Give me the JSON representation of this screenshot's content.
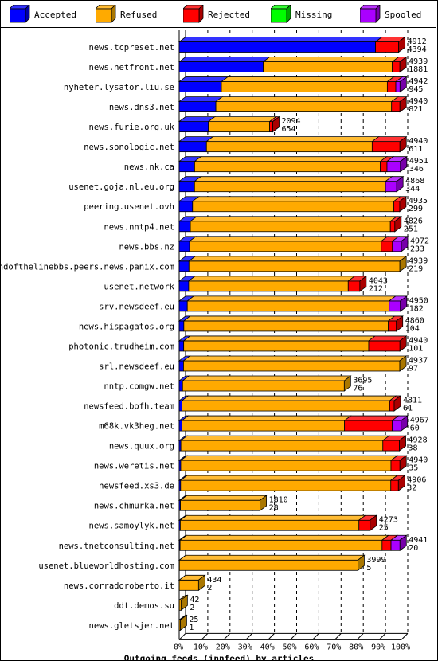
{
  "legend": [
    {
      "label": "Accepted",
      "color": "#0000ff",
      "side": "#0000aa",
      "top": "#3333ff"
    },
    {
      "label": "Refused",
      "color": "#ffaa00",
      "side": "#aa7700",
      "top": "#ffbb33"
    },
    {
      "label": "Rejected",
      "color": "#ff0000",
      "side": "#aa0000",
      "top": "#ff3333"
    },
    {
      "label": "Missing",
      "color": "#00ff00",
      "side": "#00aa00",
      "top": "#33ff33"
    },
    {
      "label": "Spooled",
      "color": "#aa00ff",
      "side": "#7700aa",
      "top": "#bb33ff"
    }
  ],
  "chart_data": {
    "type": "bar",
    "title": "Outgoing feeds (innfeed) by articles",
    "xticks": [
      "0%",
      "10%",
      "20%",
      "30%",
      "40%",
      "50%",
      "60%",
      "70%",
      "80%",
      "90%",
      "100%"
    ],
    "max_total": 4972,
    "series_names": [
      "Accepted",
      "Refused",
      "Rejected",
      "Missing",
      "Spooled"
    ],
    "rows": [
      {
        "name": "news.tcpreset.net",
        "total": 4912,
        "accepted": 4394,
        "segs": [
          4394,
          0,
          518,
          0,
          0
        ]
      },
      {
        "name": "news.netfront.net",
        "total": 4939,
        "accepted": 1881,
        "segs": [
          1881,
          2888,
          170,
          0,
          0
        ]
      },
      {
        "name": "nyheter.lysator.liu.se",
        "total": 4942,
        "accepted": 945,
        "segs": [
          945,
          3713,
          190,
          0,
          94
        ]
      },
      {
        "name": "news.dns3.net",
        "total": 4940,
        "accepted": 821,
        "segs": [
          821,
          3932,
          187,
          0,
          0
        ]
      },
      {
        "name": "news.furie.org.uk",
        "total": 2094,
        "accepted": 654,
        "segs": [
          654,
          1370,
          70,
          0,
          0
        ]
      },
      {
        "name": "news.sonologic.net",
        "total": 4940,
        "accepted": 611,
        "segs": [
          611,
          3708,
          621,
          0,
          0
        ]
      },
      {
        "name": "news.nk.ca",
        "total": 4951,
        "accepted": 346,
        "segs": [
          346,
          4155,
          150,
          0,
          300
        ]
      },
      {
        "name": "usenet.goja.nl.eu.org",
        "total": 4868,
        "accepted": 344,
        "segs": [
          344,
          4274,
          0,
          0,
          250
        ]
      },
      {
        "name": "peering.usenet.ovh",
        "total": 4935,
        "accepted": 299,
        "segs": [
          299,
          4506,
          130,
          0,
          0
        ]
      },
      {
        "name": "news.nntp4.net",
        "total": 4826,
        "accepted": 251,
        "segs": [
          251,
          4475,
          100,
          0,
          0
        ]
      },
      {
        "name": "news.bbs.nz",
        "total": 4972,
        "accepted": 233,
        "segs": [
          233,
          4289,
          250,
          0,
          200
        ]
      },
      {
        "name": "endofthelinebbs.peers.news.panix.com",
        "total": 4939,
        "accepted": 219,
        "segs": [
          219,
          4720,
          0,
          0,
          0
        ]
      },
      {
        "name": "usenet.network",
        "total": 4043,
        "accepted": 212,
        "segs": [
          212,
          3571,
          260,
          0,
          0
        ]
      },
      {
        "name": "srv.newsdeef.eu",
        "total": 4950,
        "accepted": 182,
        "segs": [
          182,
          4518,
          0,
          0,
          250
        ]
      },
      {
        "name": "news.hispagatos.org",
        "total": 4860,
        "accepted": 104,
        "segs": [
          104,
          4576,
          180,
          0,
          0
        ]
      },
      {
        "name": "photonic.trudheim.com",
        "total": 4940,
        "accepted": 101,
        "segs": [
          101,
          4140,
          699,
          0,
          0
        ]
      },
      {
        "name": "srl.newsdeef.eu",
        "total": 4937,
        "accepted": 97,
        "segs": [
          97,
          4840,
          0,
          0,
          0
        ]
      },
      {
        "name": "nntp.comgw.net",
        "total": 3695,
        "accepted": 76,
        "segs": [
          76,
          3619,
          0,
          0,
          0
        ]
      },
      {
        "name": "newsfeed.bofh.team",
        "total": 4811,
        "accepted": 61,
        "segs": [
          61,
          4650,
          100,
          0,
          0
        ]
      },
      {
        "name": "m68k.vk3heg.net",
        "total": 4967,
        "accepted": 60,
        "segs": [
          60,
          3640,
          1067,
          0,
          200
        ]
      },
      {
        "name": "news.quux.org",
        "total": 4928,
        "accepted": 38,
        "segs": [
          38,
          4520,
          370,
          0,
          0
        ]
      },
      {
        "name": "news.weretis.net",
        "total": 4940,
        "accepted": 35,
        "segs": [
          35,
          4705,
          200,
          0,
          0
        ]
      },
      {
        "name": "newsfeed.xs3.de",
        "total": 4906,
        "accepted": 32,
        "segs": [
          32,
          4704,
          170,
          0,
          0
        ]
      },
      {
        "name": "news.chmurka.net",
        "total": 1810,
        "accepted": 28,
        "segs": [
          28,
          1782,
          0,
          0,
          0
        ]
      },
      {
        "name": "news.samoylyk.net",
        "total": 4273,
        "accepted": 25,
        "segs": [
          25,
          3998,
          250,
          0,
          0
        ]
      },
      {
        "name": "news.tnetconsulting.net",
        "total": 4941,
        "accepted": 20,
        "segs": [
          20,
          4521,
          200,
          0,
          200
        ]
      },
      {
        "name": "usenet.blueworldhosting.com",
        "total": 3999,
        "accepted": 5,
        "segs": [
          5,
          3994,
          0,
          0,
          0
        ]
      },
      {
        "name": "news.corradoroberto.it",
        "total": 434,
        "accepted": 2,
        "segs": [
          2,
          432,
          0,
          0,
          0
        ]
      },
      {
        "name": "ddt.demos.su",
        "total": 42,
        "accepted": 2,
        "segs": [
          2,
          40,
          0,
          0,
          0
        ]
      },
      {
        "name": "news.gletsjer.net",
        "total": 25,
        "accepted": 1,
        "segs": [
          1,
          24,
          0,
          0,
          0
        ]
      }
    ]
  }
}
